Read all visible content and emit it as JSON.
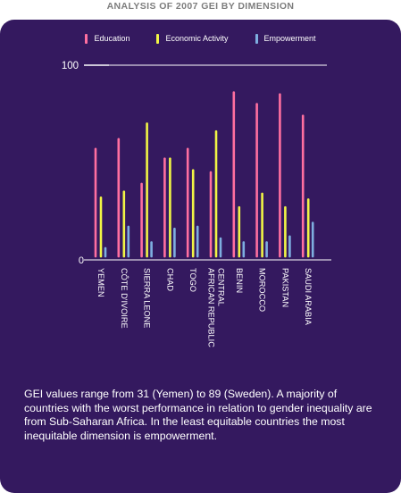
{
  "page": {
    "title": "ANALYSIS OF 2007 GEI BY DIMENSION",
    "caption": "GEI values range from 31 (Yemen) to 89 (Sweden). A majority of countries with the worst performance in relation to gender inequality are from Sub-Saharan Africa. In the least equitable countries the most inequitable dimension is empowerment."
  },
  "colors": {
    "panel": "#34195f",
    "Education": "#ff6fa0",
    "Economic Activity": "#f1f545",
    "Empowerment": "#7eaee0",
    "axis": "#ffffff"
  },
  "chart_data": {
    "type": "bar",
    "title": "",
    "xlabel": "",
    "ylabel": "",
    "ylim": [
      0,
      100
    ],
    "yticks": [
      0,
      100
    ],
    "grid": false,
    "legend_position": "top",
    "categories": [
      [
        "YEMEN"
      ],
      [
        "CÔTE D'IVOIRE"
      ],
      [
        "SIERRA LEONE"
      ],
      [
        "CHAD"
      ],
      [
        "TOGO"
      ],
      [
        "CENTRAL",
        "AFRICAN REPUBLIC"
      ],
      [
        "BENIN"
      ],
      [
        "MOROCCO"
      ],
      [
        "PAKISTAN"
      ],
      [
        "SAUDI ARABIA"
      ]
    ],
    "series": [
      {
        "name": "Education",
        "values": [
          57,
          62,
          39,
          52,
          57,
          45,
          86,
          80,
          85,
          74
        ]
      },
      {
        "name": "Economic Activity",
        "values": [
          32,
          35,
          70,
          52,
          46,
          66,
          27,
          34,
          27,
          31
        ]
      },
      {
        "name": "Empowerment",
        "values": [
          6,
          17,
          9,
          16,
          17,
          11,
          9,
          9,
          12,
          19
        ]
      }
    ]
  }
}
